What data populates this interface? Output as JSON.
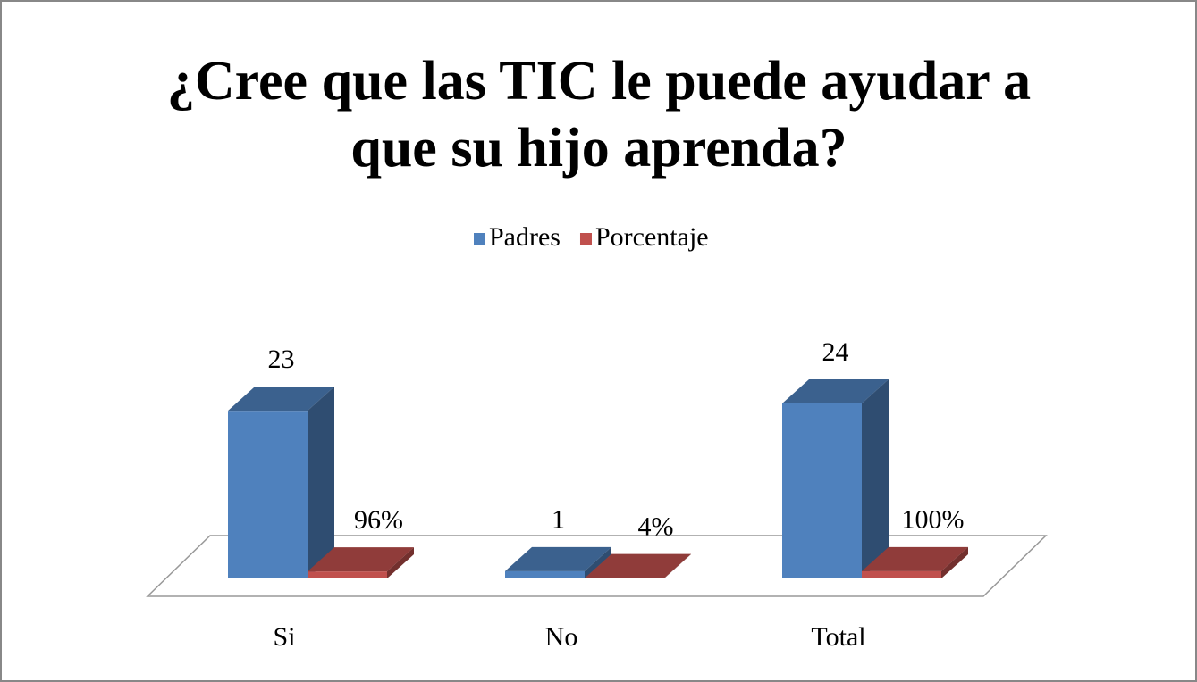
{
  "chart_data": {
    "type": "bar3d",
    "title": [
      "¿Cree que las TIC le puede ayudar a",
      "que su hijo aprenda?"
    ],
    "categories": [
      "Si",
      "No",
      "Total"
    ],
    "series": [
      {
        "name": "Padres",
        "color": "#4f81bd",
        "values": [
          23,
          1,
          24
        ]
      },
      {
        "name": "Porcentaje",
        "color": "#c0504d",
        "values": [
          0.96,
          0.04,
          1
        ],
        "value_labels": [
          "96%",
          "4%",
          "100%"
        ]
      }
    ],
    "legend": "top"
  }
}
